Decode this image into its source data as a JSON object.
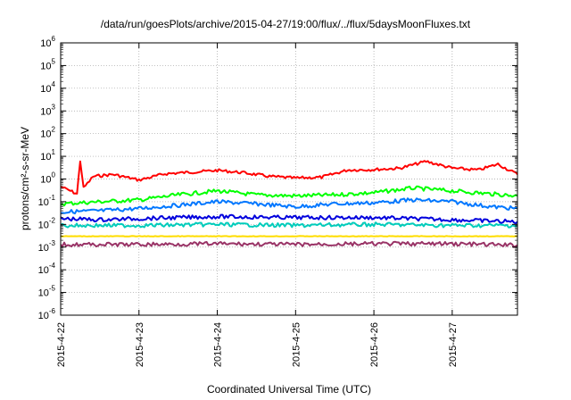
{
  "chart_data": {
    "type": "line",
    "title": "/data/run/goesPlots/archive/2015-04-27/19:00/flux/../flux/5daysMoonFluxes.txt",
    "xlabel": "Coordinated Universal Time (UTC)",
    "ylabel": "protons/cm²-s-sr-MeV",
    "yscale": "log",
    "ylim": [
      1e-06,
      1000000.0
    ],
    "xlim": [
      "2015-04-22",
      "2015-04-27 20:00"
    ],
    "grid": true,
    "y_ticks": [
      {
        "value": 1e-06,
        "base": "10",
        "exp": "-6"
      },
      {
        "value": 1e-05,
        "base": "10",
        "exp": "-5"
      },
      {
        "value": 0.0001,
        "base": "10",
        "exp": "-4"
      },
      {
        "value": 0.001,
        "base": "10",
        "exp": "-3"
      },
      {
        "value": 0.01,
        "base": "10",
        "exp": "-2"
      },
      {
        "value": 0.1,
        "base": "10",
        "exp": "-1"
      },
      {
        "value": 1,
        "base": "10",
        "exp": "0"
      },
      {
        "value": 10,
        "base": "10",
        "exp": "1"
      },
      {
        "value": 100,
        "base": "10",
        "exp": "2"
      },
      {
        "value": 1000,
        "base": "10",
        "exp": "3"
      },
      {
        "value": 10000,
        "base": "10",
        "exp": "4"
      },
      {
        "value": 100000,
        "base": "10",
        "exp": "5"
      },
      {
        "value": 1000000,
        "base": "10",
        "exp": "6"
      }
    ],
    "x_ticks": [
      {
        "date": "2015-04-22",
        "label": "2015-4-22"
      },
      {
        "date": "2015-04-23",
        "label": "2015-4-23"
      },
      {
        "date": "2015-04-24",
        "label": "2015-4-24"
      },
      {
        "date": "2015-04-25",
        "label": "2015-4-25"
      },
      {
        "date": "2015-04-26",
        "label": "2015-4-26"
      },
      {
        "date": "2015-04-27",
        "label": "2015-4-27"
      }
    ],
    "series": [
      {
        "color": "#ff0000",
        "points": [
          [
            "2015-04-22 00:00",
            0.45
          ],
          [
            "2015-04-22 03:00",
            0.3
          ],
          [
            "2015-04-22 05:00",
            0.22
          ],
          [
            "2015-04-22 06:00",
            6.5
          ],
          [
            "2015-04-22 07:00",
            0.4
          ],
          [
            "2015-04-22 10:00",
            1.3
          ],
          [
            "2015-04-22 16:00",
            1.6
          ],
          [
            "2015-04-23 00:00",
            0.9
          ],
          [
            "2015-04-23 08:00",
            1.7
          ],
          [
            "2015-04-23 16:00",
            2.0
          ],
          [
            "2015-04-24 00:00",
            2.4
          ],
          [
            "2015-04-24 08:00",
            1.9
          ],
          [
            "2015-04-24 16:00",
            1.3
          ],
          [
            "2015-04-25 00:00",
            1.1
          ],
          [
            "2015-04-25 08:00",
            1.2
          ],
          [
            "2015-04-25 16:00",
            2.5
          ],
          [
            "2015-04-26 00:00",
            2.6
          ],
          [
            "2015-04-26 08:00",
            3.0
          ],
          [
            "2015-04-26 16:00",
            6.0
          ],
          [
            "2015-04-27 00:00",
            3.0
          ],
          [
            "2015-04-27 08:00",
            2.5
          ],
          [
            "2015-04-27 14:00",
            4.5
          ],
          [
            "2015-04-27 20:00",
            1.6
          ]
        ]
      },
      {
        "color": "#00ff00",
        "points": [
          [
            "2015-04-22 00:00",
            0.08
          ],
          [
            "2015-04-22 12:00",
            0.1
          ],
          [
            "2015-04-23 00:00",
            0.12
          ],
          [
            "2015-04-23 12:00",
            0.2
          ],
          [
            "2015-04-24 00:00",
            0.3
          ],
          [
            "2015-04-24 12:00",
            0.2
          ],
          [
            "2015-04-25 00:00",
            0.18
          ],
          [
            "2015-04-25 12:00",
            0.2
          ],
          [
            "2015-04-26 00:00",
            0.25
          ],
          [
            "2015-04-26 12:00",
            0.4
          ],
          [
            "2015-04-27 00:00",
            0.3
          ],
          [
            "2015-04-27 12:00",
            0.22
          ],
          [
            "2015-04-27 20:00",
            0.18
          ]
        ]
      },
      {
        "color": "#0077ff",
        "points": [
          [
            "2015-04-22 00:00",
            0.035
          ],
          [
            "2015-04-22 12:00",
            0.04
          ],
          [
            "2015-04-23 00:00",
            0.05
          ],
          [
            "2015-04-23 12:00",
            0.07
          ],
          [
            "2015-04-24 00:00",
            0.1
          ],
          [
            "2015-04-24 12:00",
            0.08
          ],
          [
            "2015-04-25 00:00",
            0.06
          ],
          [
            "2015-04-25 12:00",
            0.08
          ],
          [
            "2015-04-26 00:00",
            0.09
          ],
          [
            "2015-04-26 12:00",
            0.12
          ],
          [
            "2015-04-27 00:00",
            0.1
          ],
          [
            "2015-04-27 12:00",
            0.06
          ],
          [
            "2015-04-27 20:00",
            0.05
          ]
        ]
      },
      {
        "color": "#0000dd",
        "points": [
          [
            "2015-04-22 00:00",
            0.018
          ],
          [
            "2015-04-22 12:00",
            0.016
          ],
          [
            "2015-04-23 00:00",
            0.018
          ],
          [
            "2015-04-24 00:00",
            0.022
          ],
          [
            "2015-04-25 00:00",
            0.02
          ],
          [
            "2015-04-26 00:00",
            0.02
          ],
          [
            "2015-04-27 00:00",
            0.016
          ],
          [
            "2015-04-27 20:00",
            0.013
          ]
        ]
      },
      {
        "color": "#00ccbb",
        "points": [
          [
            "2015-04-22 00:00",
            0.009
          ],
          [
            "2015-04-23 00:00",
            0.009
          ],
          [
            "2015-04-24 00:00",
            0.01
          ],
          [
            "2015-04-25 00:00",
            0.009
          ],
          [
            "2015-04-26 00:00",
            0.01
          ],
          [
            "2015-04-27 00:00",
            0.009
          ],
          [
            "2015-04-27 20:00",
            0.009
          ]
        ]
      },
      {
        "color": "#ffdd00",
        "points": [
          [
            "2015-04-22 00:00",
            0.003
          ],
          [
            "2015-04-27 20:00",
            0.003
          ]
        ]
      },
      {
        "color": "#993366",
        "points": [
          [
            "2015-04-22 00:00",
            0.0013
          ],
          [
            "2015-04-23 00:00",
            0.0013
          ],
          [
            "2015-04-24 00:00",
            0.0014
          ],
          [
            "2015-04-25 00:00",
            0.0013
          ],
          [
            "2015-04-26 00:00",
            0.0014
          ],
          [
            "2015-04-27 00:00",
            0.0014
          ],
          [
            "2015-04-27 20:00",
            0.0012
          ]
        ]
      }
    ]
  }
}
